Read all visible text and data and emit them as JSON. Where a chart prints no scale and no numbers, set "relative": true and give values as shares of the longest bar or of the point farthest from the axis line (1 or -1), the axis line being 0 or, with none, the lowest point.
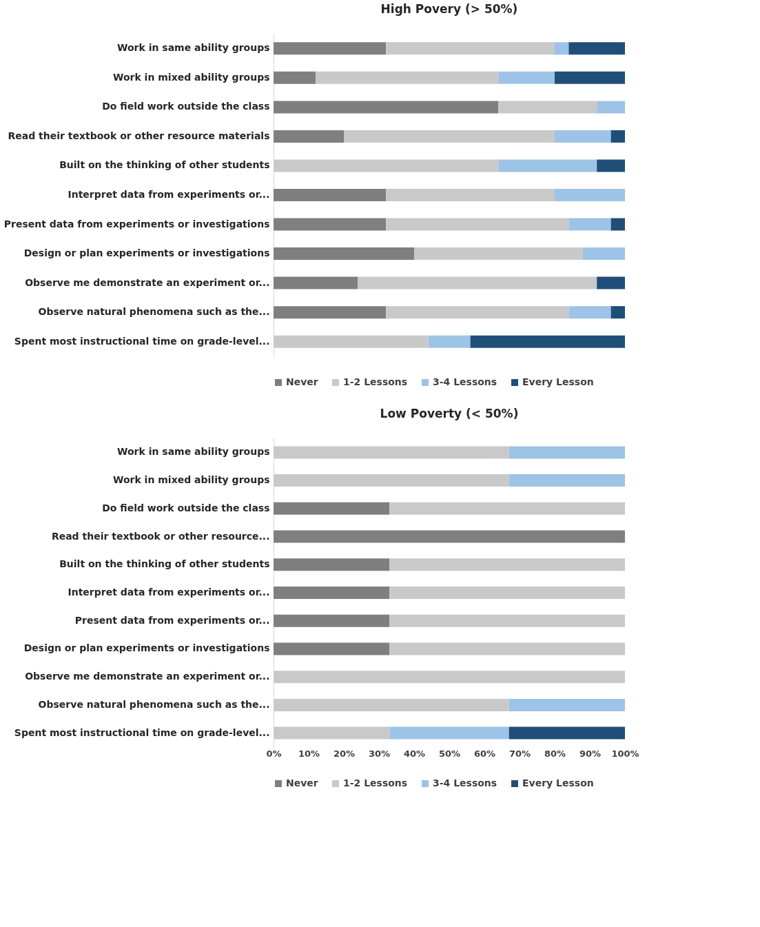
{
  "chart_data": [
    {
      "type": "bar",
      "title": "High Povery (> 50%)",
      "orientation": "horizontal",
      "stacked": true,
      "relative": true,
      "tick_labels": "y",
      "legend": "bottom",
      "categories": [
        "Work in same ability groups",
        "Work in mixed ability groups",
        "Do field work outside the class",
        "Read their textbook or other resource materials",
        "Built on the thinking of other students",
        "Interpret data from experiments or...",
        "Present data from experiments or investigations",
        "Design or plan experiments or investigations",
        "Observe me demonstrate an experiment or...",
        "Observe natural phenomena such as the...",
        "Spent most instructional time on grade-level..."
      ],
      "series": [
        {
          "name": "Never",
          "color": "#7f7f7f",
          "values": [
            0.32,
            0.12,
            0.64,
            0.2,
            0,
            0.32,
            0.32,
            0.4,
            0.24,
            0.32,
            0
          ]
        },
        {
          "name": "1-2 Lessons",
          "color": "#c9c9c9",
          "values": [
            0.48,
            0.52,
            0.28,
            0.6,
            0.64,
            0.48,
            0.52,
            0.48,
            0.68,
            0.52,
            0.44
          ]
        },
        {
          "name": "3-4 Lessons",
          "color": "#9dc3e6",
          "values": [
            0.04,
            0.16,
            0.08,
            0.16,
            0.28,
            0.2,
            0.12,
            0.12,
            0,
            0.12,
            0.12
          ]
        },
        {
          "name": "Every Lesson",
          "color": "#1f4e79",
          "values": [
            0.16,
            0.2,
            0,
            0.04,
            0.08,
            0,
            0.04,
            0,
            0.08,
            0.04,
            0.44
          ]
        }
      ]
    },
    {
      "type": "bar",
      "title": "Low Poverty (< 50%)",
      "orientation": "horizontal",
      "stacked": true,
      "legend": "bottom",
      "xlim": [
        0,
        100
      ],
      "xticks": [
        {
          "value": 0,
          "label": "0%"
        },
        {
          "value": 10,
          "label": "10%"
        },
        {
          "value": 20,
          "label": "20%"
        },
        {
          "value": 30,
          "label": "30%"
        },
        {
          "value": 40,
          "label": "40%"
        },
        {
          "value": 50,
          "label": "50%"
        },
        {
          "value": 60,
          "label": "60%"
        },
        {
          "value": 70,
          "label": "70%"
        },
        {
          "value": 80,
          "label": "80%"
        },
        {
          "value": 90,
          "label": "90%"
        },
        {
          "value": 100,
          "label": "100%"
        }
      ],
      "categories": [
        "Work in same ability groups",
        "Work in mixed ability groups",
        "Do field work outside the class",
        "Read their textbook or other resource...",
        "Built on the thinking of other students",
        "Interpret data from experiments or...",
        "Present data from experiments or...",
        "Design or plan experiments or investigations",
        "Observe me demonstrate an experiment or...",
        "Observe natural phenomena such as the...",
        "Spent most instructional time on grade-level..."
      ],
      "series": [
        {
          "name": "Never",
          "color": "#7f7f7f",
          "values": [
            0,
            0,
            33,
            100,
            33,
            33,
            33,
            33,
            0,
            0,
            0
          ]
        },
        {
          "name": "1-2 Lessons",
          "color": "#c9c9c9",
          "values": [
            67,
            67,
            67,
            0,
            67,
            67,
            67,
            67,
            100,
            67,
            33
          ]
        },
        {
          "name": "3-4 Lessons",
          "color": "#9dc3e6",
          "values": [
            33,
            33,
            0,
            0,
            0,
            0,
            0,
            0,
            0,
            33,
            34
          ]
        },
        {
          "name": "Every Lesson",
          "color": "#1f4e79",
          "values": [
            0,
            0,
            0,
            0,
            0,
            0,
            0,
            0,
            0,
            0,
            33
          ]
        }
      ]
    }
  ]
}
